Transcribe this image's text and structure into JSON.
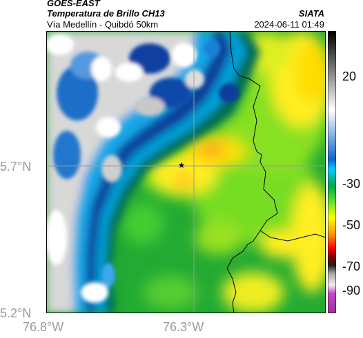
{
  "header": {
    "source": "GOES-EAST",
    "product": "Temperatura de Brillo CH13",
    "region": "Vía Medellín - Quibdó 50km",
    "org": "SIATA",
    "datetime": "2024-06-11 01:49"
  },
  "map": {
    "lat_ticks": [
      "5.7°N",
      "5.2°N"
    ],
    "lon_ticks": [
      "76.8°W",
      "76.3°W"
    ],
    "marker": "star",
    "colors": {
      "frame": "#000000",
      "gridline": "#9a9a9a",
      "border_line": "#000000"
    }
  },
  "colorbar": {
    "ticks": [
      "20",
      "-30",
      "-50",
      "-70",
      "-90"
    ],
    "stops": [
      {
        "t": 0.0,
        "c": "#000000"
      },
      {
        "t": 0.28,
        "c": "#ffffff"
      },
      {
        "t": 0.455,
        "c": "#1166cc"
      },
      {
        "t": 0.49,
        "c": "#00ccff"
      },
      {
        "t": 0.55,
        "c": "#00aa44"
      },
      {
        "t": 0.6,
        "c": "#55dd33"
      },
      {
        "t": 0.66,
        "c": "#ffff00"
      },
      {
        "t": 0.72,
        "c": "#ff9900"
      },
      {
        "t": 0.77,
        "c": "#ff0000"
      },
      {
        "t": 0.8,
        "c": "#880000"
      },
      {
        "t": 0.83,
        "c": "#222222"
      },
      {
        "t": 0.86,
        "c": "#aaaaaa"
      },
      {
        "t": 0.9,
        "c": "#eeeeee"
      },
      {
        "t": 0.93,
        "c": "#cc44cc"
      },
      {
        "t": 1.0,
        "c": "#993399"
      }
    ]
  }
}
